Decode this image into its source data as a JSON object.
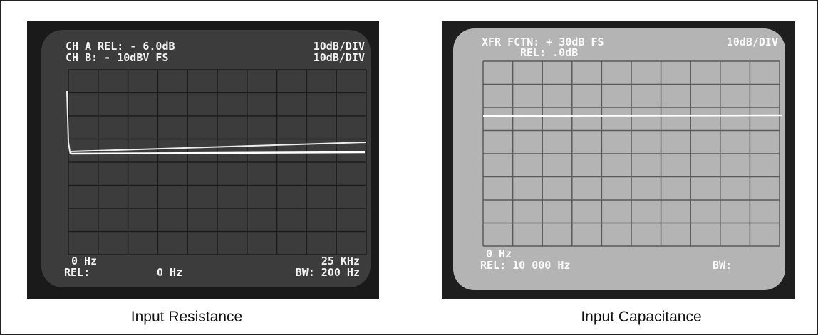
{
  "figures": [
    {
      "caption": "Input Resistance",
      "screen": {
        "top_left": [
          "CH A REL: - 6.0dB",
          "CH B: - 10dBV FS"
        ],
        "top_right": [
          "10dB/DIV",
          "10dB/DIV"
        ],
        "bottom_left": [
          "0 Hz",
          "REL:"
        ],
        "bottom_center": "0 Hz",
        "bottom_right": [
          "25 KHz",
          "BW: 200 Hz"
        ]
      }
    },
    {
      "caption": "Input Capacitance",
      "screen": {
        "top_left": [
          "XFR FCTN: + 30dB FS",
          "REL: .0dB"
        ],
        "top_right": [
          "10dB/DIV"
        ],
        "bottom_left": [
          "0 Hz",
          "REL: 10 000 Hz"
        ],
        "bottom_right": [
          "BW:"
        ]
      }
    }
  ]
}
